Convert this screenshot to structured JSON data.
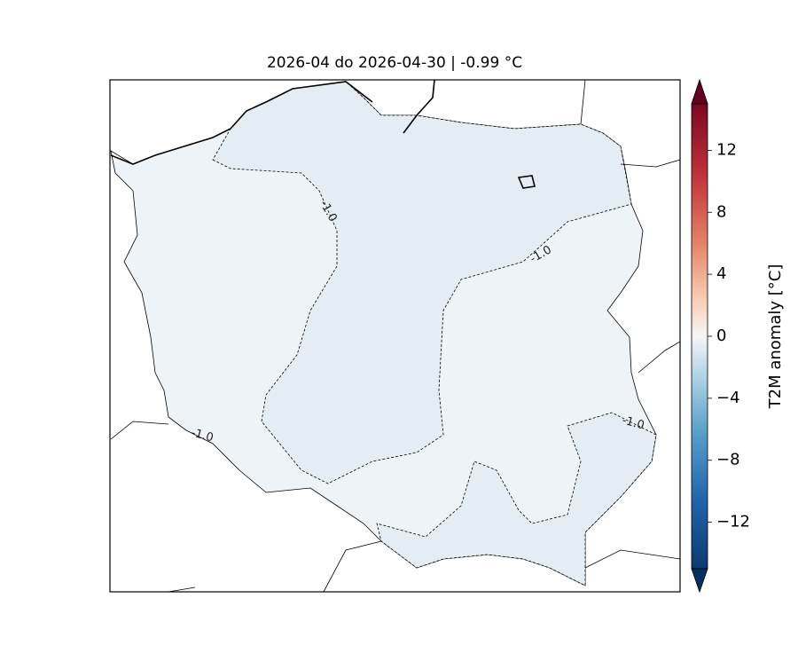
{
  "title": "2026-04 do 2026-04-30 | -0.99 °C",
  "colorbar": {
    "label": "T2M anomaly [°C]",
    "lim": [
      -15,
      15
    ],
    "ticks": [
      {
        "value": 12,
        "label": "12"
      },
      {
        "value": 8,
        "label": "8"
      },
      {
        "value": 4,
        "label": "4"
      },
      {
        "value": 0,
        "label": "0"
      },
      {
        "value": -4,
        "label": "−4"
      },
      {
        "value": -8,
        "label": "−8"
      },
      {
        "value": -12,
        "label": "−12"
      }
    ]
  },
  "contour_labels": [
    "-1.0",
    "-1.0",
    "-1.0",
    "-1.0"
  ]
}
